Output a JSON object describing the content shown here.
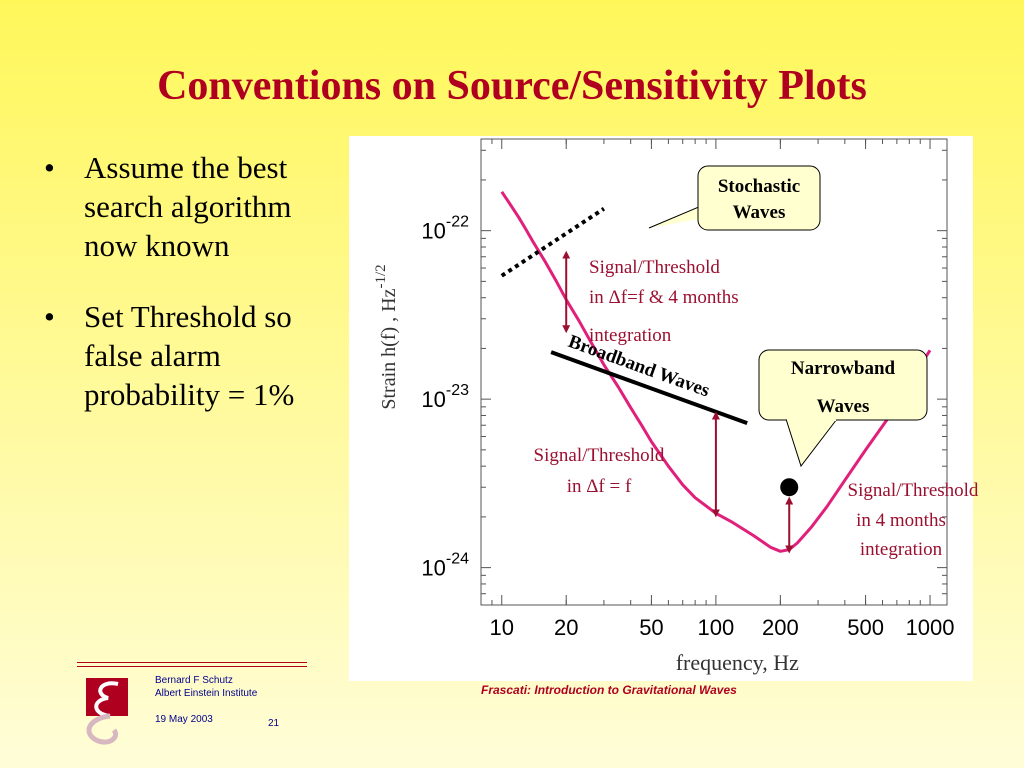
{
  "slide": {
    "title": "Conventions on  Source/Sensitivity Plots",
    "bullets": [
      "Assume the best search algorithm now known",
      "Set Threshold so false alarm probability = 1%"
    ],
    "bullet_glyph": "•",
    "footer": {
      "author": "Bernard F Schutz",
      "institute": "Albert Einstein Institute",
      "date": "19 May 2003",
      "page": "21",
      "caption": "Frascati: Introduction to Gravitational Waves"
    }
  },
  "chart_data": {
    "type": "line",
    "xlabel": "frequency, Hz",
    "ylabel": "Strain h(f) , Hz",
    "ylabel_exponent": "-1/2",
    "x_scale": "log",
    "y_scale": "log",
    "xlim": [
      8,
      1200
    ],
    "ylim": [
      6e-25,
      3.5e-22
    ],
    "x_ticks": [
      10,
      20,
      50,
      100,
      200,
      500,
      1000
    ],
    "x_tick_labels": [
      "10",
      "20",
      "50",
      "100",
      "200",
      "500",
      "1000"
    ],
    "y_ticks": [
      1e-22,
      1e-23,
      1e-24
    ],
    "y_tick_base": "10",
    "y_tick_exponents": [
      "-22",
      "-23",
      "-24"
    ],
    "grid": false,
    "series": [
      {
        "color": "#e0207a",
        "x": [
          10,
          11,
          12,
          13,
          14,
          16,
          18,
          20,
          23,
          26,
          30,
          35,
          40,
          45,
          50,
          60,
          70,
          80,
          100,
          120,
          150,
          180,
          200,
          220,
          240,
          280,
          330,
          400,
          500,
          650,
          800,
          1000
        ],
        "y": [
          1.7e-22,
          1.42e-22,
          1.2e-22,
          1.01e-22,
          8.6e-23,
          6.5e-23,
          5e-23,
          3.9e-23,
          2.9e-23,
          2.2e-23,
          1.6e-23,
          1.18e-23,
          8.9e-24,
          7e-24,
          5.6e-24,
          4e-24,
          3.1e-24,
          2.6e-24,
          2.1e-24,
          1.85e-24,
          1.55e-24,
          1.32e-24,
          1.25e-24,
          1.28e-24,
          1.4e-24,
          1.75e-24,
          2.3e-24,
          3.3e-24,
          5e-24,
          8e-24,
          1.25e-23,
          1.95e-23
        ]
      }
    ],
    "annotations": {
      "stochastic": {
        "callout_lines": [
          "Stochastic",
          "Waves"
        ],
        "line_x": [
          10,
          30
        ],
        "line_y": [
          5.4e-23,
          1.35e-22
        ],
        "arrow_x": 20,
        "arrow_y": [
          7.2e-23,
          2.6e-23
        ],
        "threshold_lines": [
          "Signal/Threshold",
          "in Δf=f & 4 months",
          "integration"
        ]
      },
      "broadband": {
        "label": "Broadband Waves",
        "line_x": [
          17,
          140
        ],
        "line_y": [
          1.9e-23,
          7.2e-24
        ],
        "arrow_x": 100,
        "arrow_y": [
          8e-24,
          2.1e-24
        ],
        "threshold_lines": [
          "Signal/Threshold",
          "in Δf = f"
        ]
      },
      "narrowband": {
        "callout_lines": [
          "Narrowband",
          "Waves"
        ],
        "point_x": 220,
        "point_y": 3e-24,
        "arrow_x": 220,
        "arrow_y": [
          2.5e-24,
          1.28e-24
        ],
        "threshold_lines": [
          "Signal/Threshold",
          "in 4 months",
          "integration"
        ]
      }
    }
  }
}
